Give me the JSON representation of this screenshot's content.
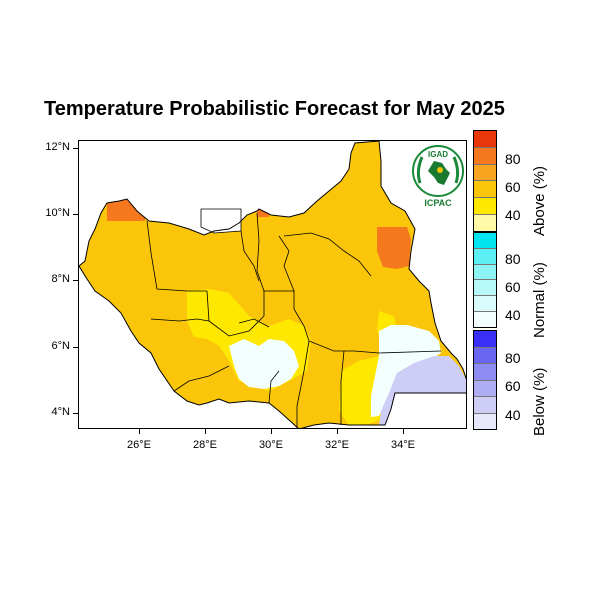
{
  "title": "Temperature Probabilistic Forecast for May 2025",
  "axes": {
    "y_labels": [
      "12°N",
      "10°N",
      "8°N",
      "6°N",
      "4°N"
    ],
    "x_labels": [
      "26°E",
      "28°E",
      "30°E",
      "32°E",
      "34°E"
    ]
  },
  "logo": {
    "top_text": "IGAD",
    "bottom_text": "ICPAC"
  },
  "legend": {
    "above": {
      "title": "Above (%)",
      "labels": [
        "80",
        "60",
        "40"
      ],
      "colors": [
        "#e8380a",
        "#f5781e",
        "#f7a520",
        "#fbc60a",
        "#ffe800",
        "#fff9a8"
      ]
    },
    "normal": {
      "title": "Normal (%)",
      "labels": [
        "80",
        "60",
        "40"
      ],
      "colors": [
        "#00e5f0",
        "#5cf0f5",
        "#8ef5f7",
        "#b7f8f8",
        "#d9fbfb",
        "#f3fefe"
      ]
    },
    "below": {
      "title": "Below (%)",
      "labels": [
        "80",
        "60",
        "40"
      ],
      "colors": [
        "#3a30f5",
        "#6a66f2",
        "#8e8cf2",
        "#aeacf2",
        "#cdcdf5",
        "#e8e8fb"
      ]
    }
  },
  "map_colors": {
    "above_main": "#fbc60a",
    "above_light": "#ffe800",
    "above_high": "#f5781e",
    "normal_light": "#f3fefe",
    "below_light": "#cdcdf5",
    "boundary": "#000000"
  }
}
